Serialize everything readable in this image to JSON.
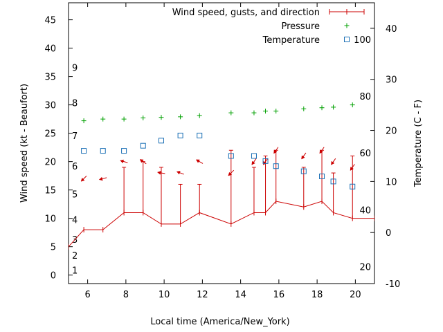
{
  "chart_data": {
    "type": "line",
    "xlabel": "Local time (America/New_York)",
    "ylabel": "Wind speed (kt - Beaufort)",
    "y2label": "Temperature (C - F)",
    "xlim": [
      5,
      21
    ],
    "ylim": [
      -1.5,
      48
    ],
    "y2lim": [
      -10,
      45
    ],
    "x_ticks": [
      6,
      8,
      10,
      12,
      14,
      16,
      18,
      20
    ],
    "y_ticks": [
      0,
      5,
      10,
      15,
      20,
      25,
      30,
      35,
      40,
      45
    ],
    "y2_ticks": [
      -10,
      0,
      10,
      20,
      30,
      40
    ],
    "beaufort_ticks": [
      {
        "label": "1",
        "y": 0.9
      },
      {
        "label": "2",
        "y": 3.5
      },
      {
        "label": "3",
        "y": 6.3
      },
      {
        "label": "4",
        "y": 9.8
      },
      {
        "label": "5",
        "y": 14.3
      },
      {
        "label": "6",
        "y": 19.2
      },
      {
        "label": "7",
        "y": 24.6
      },
      {
        "label": "8",
        "y": 30.4
      },
      {
        "label": "9",
        "y": 36.6
      }
    ],
    "fahrenheit_ticks": [
      {
        "label": "20",
        "y2": -6.7
      },
      {
        "label": "40",
        "y2": 4.4
      },
      {
        "label": "60",
        "y2": 15.6
      },
      {
        "label": "80",
        "y2": 26.7
      },
      {
        "label": "100",
        "y2": 37.8
      }
    ],
    "legend": {
      "placement": "top-right",
      "entries": [
        "Wind speed, gusts, and direction",
        "Pressure",
        "Temperature"
      ]
    },
    "series": [
      {
        "name": "Wind speed, gusts, and direction",
        "color": "#cc0000",
        "x": [
          5,
          5.8,
          6.8,
          7.9,
          8.9,
          9.85,
          10.85,
          11.85,
          13.5,
          14.7,
          15.3,
          15.85,
          17.3,
          18.25,
          18.85,
          19.85,
          21
        ],
        "y": [
          5,
          8,
          8,
          11,
          11,
          9,
          9,
          11,
          9,
          11,
          11,
          13,
          12,
          13,
          11,
          10,
          10
        ],
        "gusts": [
          null,
          null,
          null,
          19,
          20,
          19,
          16,
          16,
          22,
          19,
          21,
          22,
          19,
          22,
          18,
          21,
          null
        ],
        "direction_angle_deg": [
          null,
          225,
          195,
          165,
          145,
          170,
          160,
          150,
          225,
          235,
          235,
          235,
          235,
          235,
          235,
          235,
          null
        ]
      },
      {
        "name": "Pressure",
        "color": "#00a000",
        "x": [
          5.8,
          6.8,
          7.9,
          8.9,
          9.85,
          10.85,
          11.85,
          13.5,
          14.7,
          15.3,
          15.85,
          17.3,
          18.25,
          18.85,
          19.85
        ],
        "y": [
          27.2,
          27.5,
          27.5,
          27.7,
          27.8,
          27.9,
          28.1,
          28.6,
          28.6,
          28.9,
          28.9,
          29.3,
          29.5,
          29.6,
          30.0
        ]
      },
      {
        "name": "Temperature",
        "color": "#1a6fb5",
        "x": [
          5.8,
          6.8,
          7.9,
          8.9,
          9.85,
          10.85,
          11.85,
          13.5,
          14.7,
          15.3,
          15.85,
          17.3,
          18.25,
          18.85,
          19.85
        ],
        "y2": [
          16,
          16,
          16,
          17,
          18,
          19,
          19,
          15,
          15,
          14,
          13,
          12,
          11,
          10,
          9
        ]
      }
    ]
  }
}
